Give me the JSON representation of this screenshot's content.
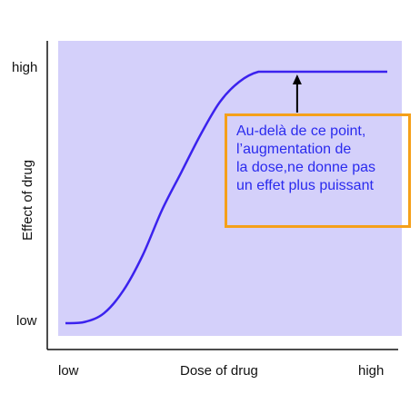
{
  "chart_data": {
    "type": "line",
    "title": "",
    "xlabel": "Dose of drug",
    "ylabel": "Effect of drug",
    "x_tick_labels": [
      "low",
      "high"
    ],
    "y_tick_labels": [
      "low",
      "high"
    ],
    "xlim": [
      0,
      1
    ],
    "ylim": [
      0,
      1
    ],
    "grid": false,
    "series": [
      {
        "color": "#3b22ee",
        "x": [
          0.0,
          0.06,
          0.12,
          0.18,
          0.24,
          0.3,
          0.36,
          0.42,
          0.48,
          0.54,
          0.6,
          0.66,
          0.72,
          1.0
        ],
        "y": [
          0.0,
          0.005,
          0.04,
          0.13,
          0.27,
          0.45,
          0.6,
          0.75,
          0.88,
          0.96,
          1.0,
          1.0,
          1.0,
          1.0
        ]
      }
    ],
    "annotation": {
      "text": "Au-delà de ce point,\nl’augmentation de\nla dose,ne donne pas\nun effet plus puissant",
      "arrow_target": {
        "x": 0.72,
        "y": 1.0
      }
    },
    "colors": {
      "plot_background": "#d4d0fa",
      "curve": "#3b22ee",
      "annotation_border": "#f5a01a",
      "annotation_text": "#2a2aee",
      "axis": "#111111"
    }
  }
}
